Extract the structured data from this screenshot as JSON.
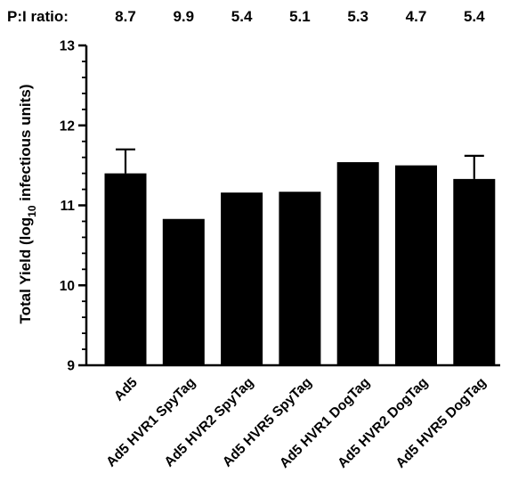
{
  "ratio_row": {
    "label": "P:I ratio:",
    "values": [
      "8.7",
      "9.9",
      "5.4",
      "5.1",
      "5.3",
      "4.7",
      "5.4"
    ]
  },
  "chart_data": {
    "type": "bar",
    "ylabel_main": "Total Yield (log",
    "ylabel_sub": "10",
    "ylabel_tail": " infectious units)",
    "ylim": [
      9,
      13
    ],
    "yticks": [
      "9",
      "10",
      "11",
      "12",
      "13"
    ],
    "grid": false,
    "legend": "none",
    "bar_color": "#000000",
    "categories": [
      "Ad5",
      "Ad5 HVR1 SpyTag",
      "Ad5 HVR2 SpyTag",
      "Ad5 HVR5 SpyTag",
      "Ad5 HVR1 DogTag",
      "Ad5 HVR2 DogTag",
      "Ad5 HVR5 DogTag"
    ],
    "values": [
      11.4,
      10.83,
      11.16,
      11.17,
      11.54,
      11.5,
      11.33
    ],
    "error_upper": [
      0.3,
      0,
      0,
      0,
      0,
      0,
      0.29
    ]
  }
}
